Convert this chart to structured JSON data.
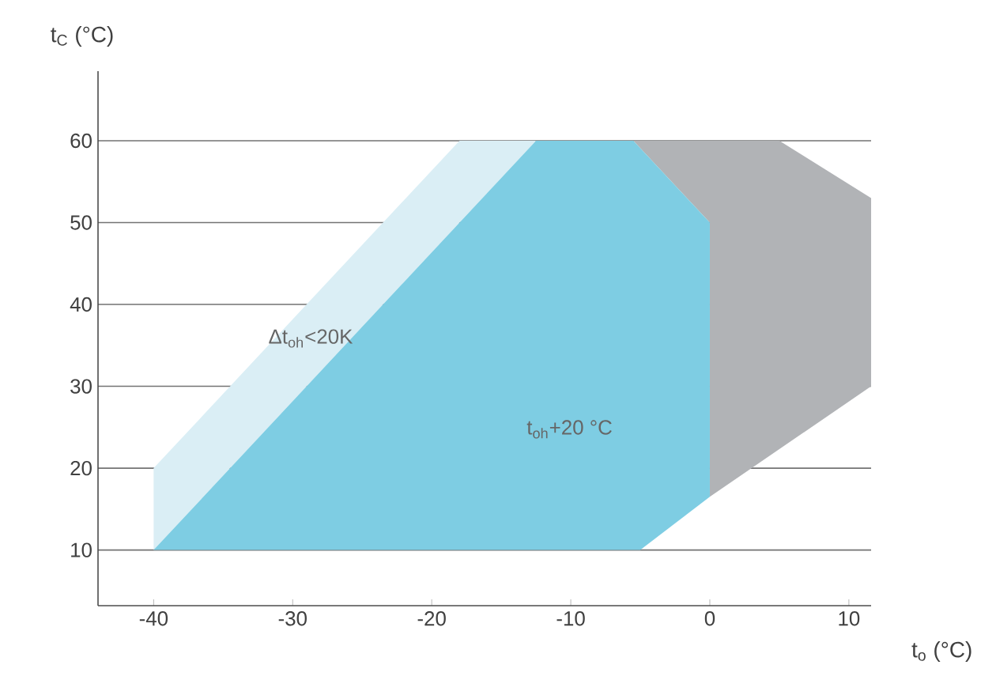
{
  "chart_data": {
    "type": "area",
    "xlabel": "t$_{o}$ (°C)",
    "ylabel": "t$_{C}$ (°C)",
    "xlim": [
      -44,
      11.6
    ],
    "ylim": [
      3.2,
      68.5
    ],
    "xticks": [
      -40,
      -30,
      -20,
      -10,
      0,
      10
    ],
    "yticks": [
      10,
      20,
      30,
      40,
      50,
      60
    ],
    "grid": "y",
    "series": [
      {
        "color": "#b1b3b6",
        "x": [
          -5.5,
          5,
          11.6,
          11.6,
          0,
          0
        ],
        "values": [
          60,
          60,
          53,
          30,
          16.5,
          50
        ]
      },
      {
        "color": "#daeef5",
        "x": [
          -40,
          -40,
          -18,
          -12.5
        ],
        "values": [
          10,
          20,
          60,
          60
        ]
      },
      {
        "color": "#7ecde3",
        "x": [
          -40,
          -12.5,
          -5.5,
          0,
          0,
          -5
        ],
        "values": [
          10,
          60,
          60,
          50,
          16.5,
          10
        ]
      }
    ],
    "annotations": [
      "Δt$_{oh}$<20K",
      "t$_{oh}$+20 °C"
    ]
  }
}
